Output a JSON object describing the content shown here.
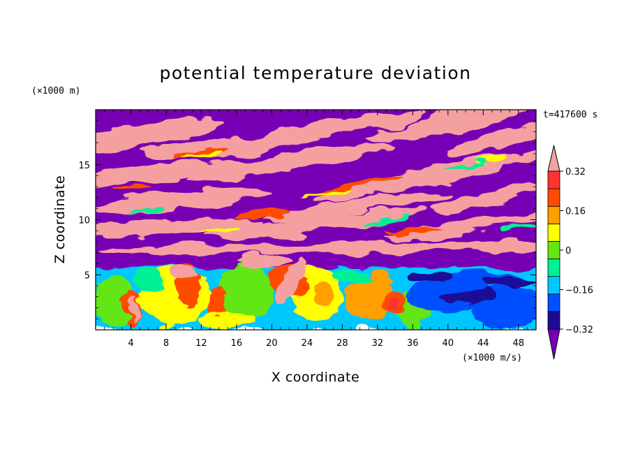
{
  "chart_data": {
    "type": "heatmap",
    "title": "potential temperature deviation",
    "xlabel": "X coordinate",
    "ylabel": "Z coordinate",
    "x_unit": "(×1000 m/s)",
    "y_unit": "(×1000 m)",
    "time_label": "t=417600 s",
    "xlim": [
      0,
      50
    ],
    "ylim": [
      0,
      20
    ],
    "x_ticks": [
      4,
      8,
      12,
      16,
      20,
      24,
      28,
      32,
      36,
      40,
      44,
      48
    ],
    "x_tick_labels": [
      "4",
      "8",
      "12",
      "16",
      "20",
      "24",
      "28",
      "32",
      "36",
      "40",
      "44",
      "48"
    ],
    "y_ticks": [
      5,
      10,
      15
    ],
    "y_tick_labels": [
      "5",
      "10",
      "15"
    ],
    "colorbar": {
      "levels": [
        -0.4,
        -0.32,
        -0.24,
        -0.16,
        -0.08,
        0,
        0.08,
        0.16,
        0.24,
        0.32,
        0.4
      ],
      "tick_values": [
        -0.32,
        -0.16,
        0,
        0.16,
        0.32
      ],
      "tick_labels": [
        "−0.32",
        "−0.16",
        "0",
        "0.16",
        "0.32"
      ],
      "colors": [
        "#7800b4",
        "#1e0a96",
        "#0050ff",
        "#00c8ff",
        "#00f096",
        "#64e614",
        "#ffff00",
        "#ffa000",
        "#ff4b00",
        "#ff3232",
        "#f5a0a0"
      ],
      "extend": "both"
    }
  }
}
